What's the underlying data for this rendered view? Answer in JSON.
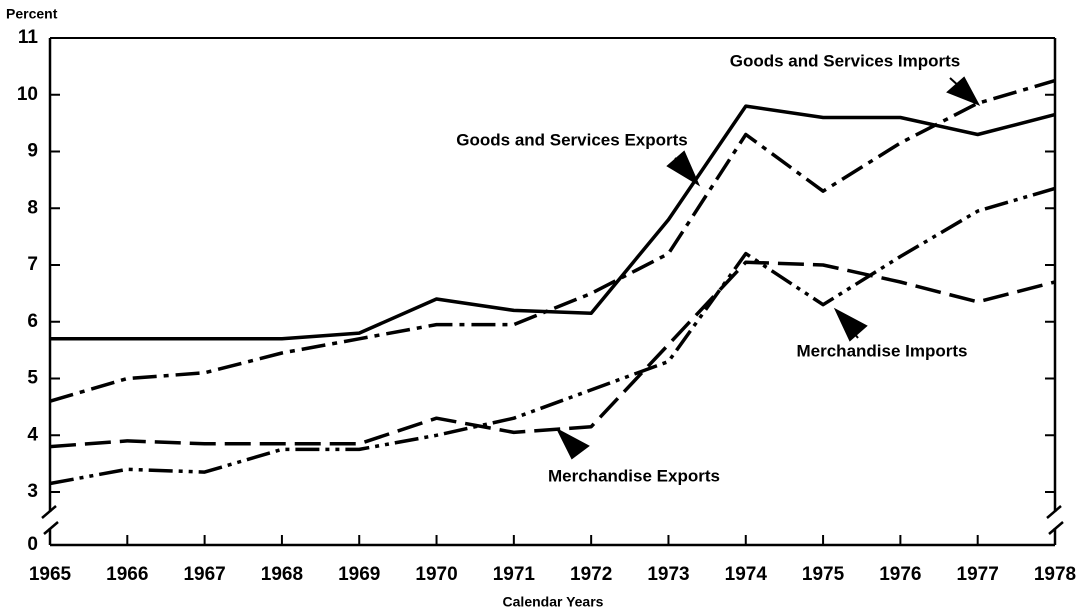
{
  "chart_data": {
    "type": "line",
    "y_label": "Percent",
    "x_label": "Calendar Years",
    "x": [
      1965,
      1966,
      1967,
      1968,
      1969,
      1970,
      1971,
      1972,
      1973,
      1974,
      1975,
      1976,
      1977,
      1978
    ],
    "xlim": [
      1965,
      1978
    ],
    "xticks": [
      1965,
      1966,
      1967,
      1968,
      1969,
      1970,
      1971,
      1972,
      1973,
      1974,
      1975,
      1976,
      1977,
      1978
    ],
    "ylim": [
      0,
      11
    ],
    "yticks": [
      0,
      3,
      4,
      5,
      6,
      7,
      8,
      9,
      10,
      11
    ],
    "y_axis_break": true,
    "grid": false,
    "series": [
      {
        "name": "Goods and Services Exports",
        "color": "#000000",
        "line_style": "solid",
        "values": [
          5.7,
          5.7,
          5.7,
          5.7,
          5.8,
          6.4,
          6.2,
          6.15,
          7.8,
          9.8,
          9.6,
          9.6,
          9.3,
          9.65
        ]
      },
      {
        "name": "Goods and Services Imports",
        "color": "#000000",
        "line_style": "dash-dot",
        "values": [
          4.6,
          5.0,
          5.1,
          5.45,
          5.7,
          5.95,
          5.95,
          6.5,
          7.2,
          9.3,
          8.3,
          9.15,
          9.85,
          10.25
        ]
      },
      {
        "name": "Merchandise Exports",
        "color": "#000000",
        "line_style": "dashed",
        "values": [
          3.8,
          3.9,
          3.85,
          3.85,
          3.85,
          4.3,
          4.05,
          4.15,
          5.6,
          7.05,
          7.0,
          6.7,
          6.35,
          6.7
        ]
      },
      {
        "name": "Merchandise Imports",
        "color": "#000000",
        "line_style": "dash-dot-dot",
        "values": [
          3.15,
          3.4,
          3.35,
          3.75,
          3.75,
          4.0,
          4.3,
          4.8,
          5.3,
          7.2,
          6.3,
          7.15,
          7.95,
          8.35
        ]
      }
    ]
  }
}
